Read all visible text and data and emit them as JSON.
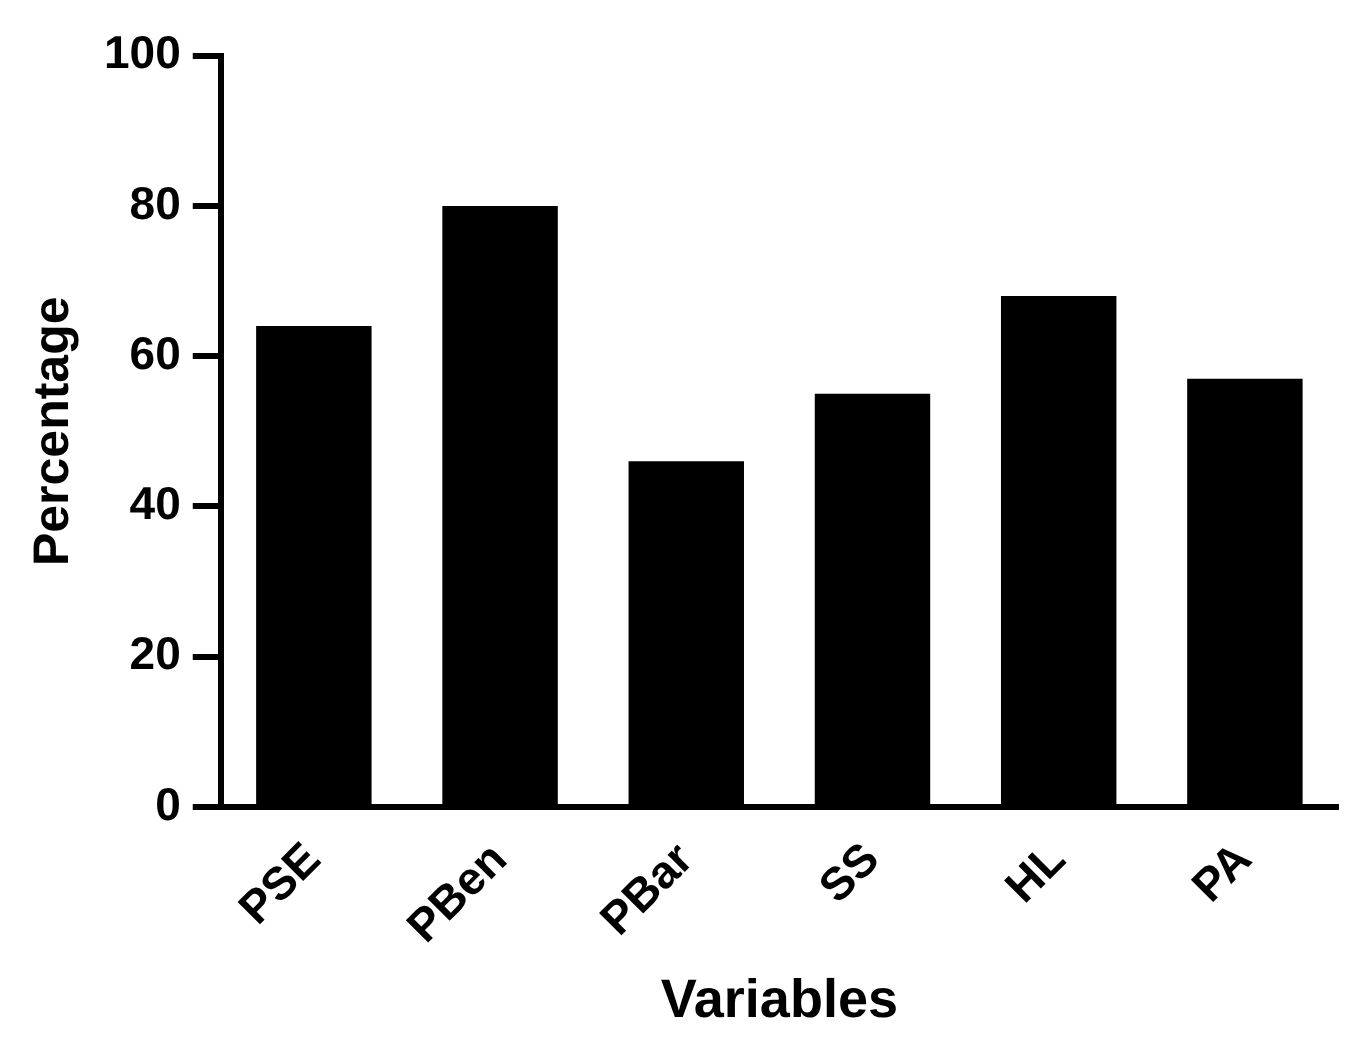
{
  "chart_data": {
    "type": "bar",
    "xlabel": "Variables",
    "ylabel": "Percentage",
    "categories": [
      "PSE",
      "PBen",
      "PBar",
      "SS",
      "HL",
      "PA"
    ],
    "values": [
      64,
      80,
      46,
      55,
      68,
      57
    ],
    "color": "#000000",
    "ylim": [
      0,
      100
    ],
    "yticks": [
      0,
      20,
      40,
      60,
      80,
      100
    ],
    "grid": false,
    "legend": false
  }
}
